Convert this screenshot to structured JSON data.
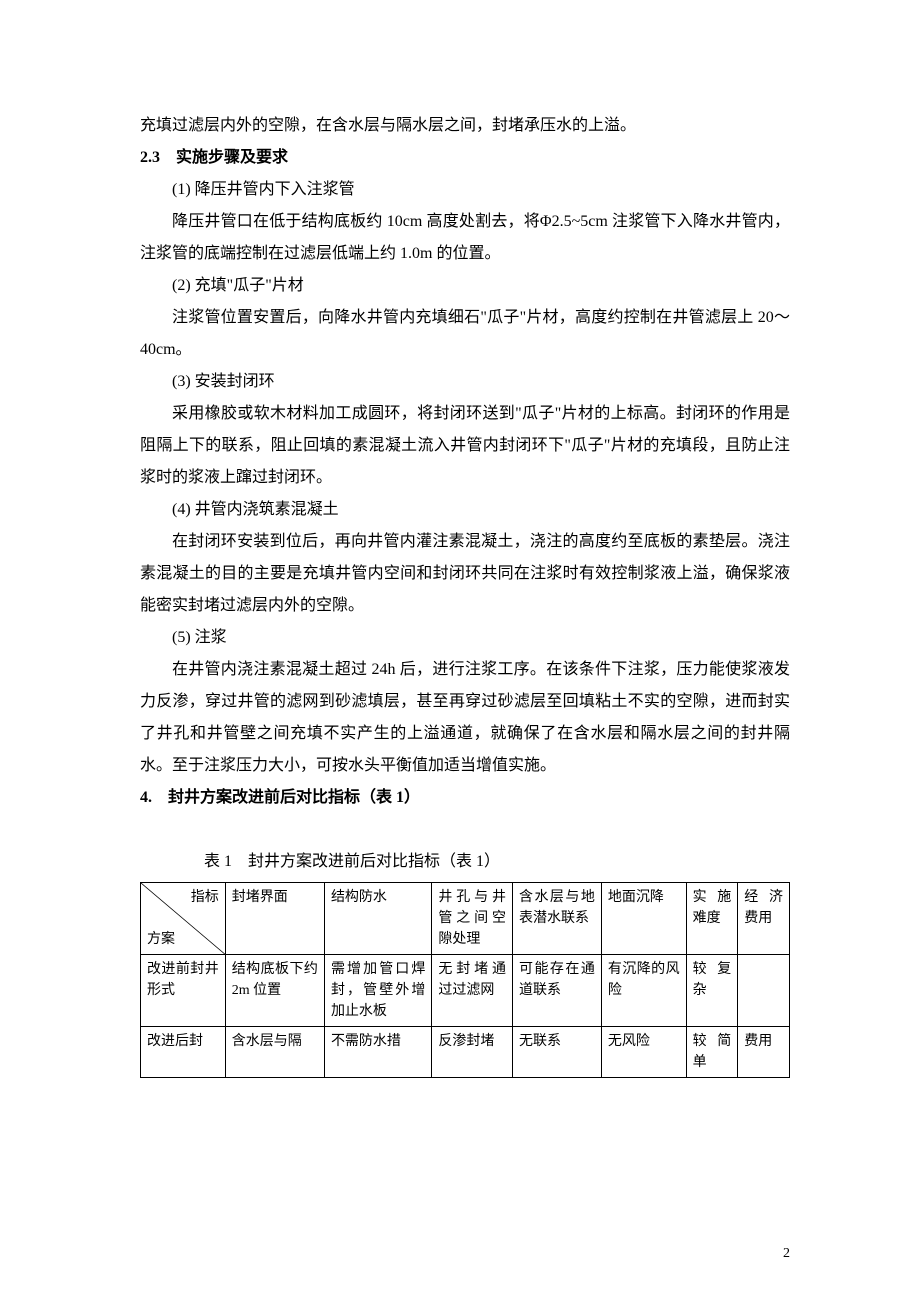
{
  "paragraphs": {
    "p0": "充填过滤层内外的空隙，在含水层与隔水层之间，封堵承压水的上溢。",
    "h23": "2.3　实施步骤及要求",
    "p1_title": "(1) 降压井管内下入注浆管",
    "p1_body": "降压井管口在低于结构底板约 10cm 高度处割去，将Φ2.5~5cm 注浆管下入降水井管内，注浆管的底端控制在过滤层低端上约 1.0m 的位置。",
    "p2_title": "(2) 充填\"瓜子\"片材",
    "p2_body": "注浆管位置安置后，向降水井管内充填细石\"瓜子\"片材，高度约控制在井管滤层上 20～40cm。",
    "p3_title": "(3) 安装封闭环",
    "p3_body": "采用橡胶或软木材料加工成圆环，将封闭环送到\"瓜子\"片材的上标高。封闭环的作用是阻隔上下的联系，阻止回填的素混凝土流入井管内封闭环下\"瓜子\"片材的充填段，且防止注浆时的浆液上蹿过封闭环。",
    "p4_title": "(4) 井管内浇筑素混凝土",
    "p4_body": "在封闭环安装到位后，再向井管内灌注素混凝土，浇注的高度约至底板的素垫层。浇注素混凝土的目的主要是充填井管内空间和封闭环共同在注浆时有效控制浆液上溢，确保浆液能密实封堵过滤层内外的空隙。",
    "p5_title": "(5) 注浆",
    "p5_body": "在井管内浇注素混凝土超过 24h 后，进行注浆工序。在该条件下注浆，压力能使浆液发力反渗，穿过井管的滤网到砂滤填层，甚至再穿过砂滤层至回填粘土不实的空隙，进而封实了井孔和井管壁之间充填不实产生的上溢通道，就确保了在含水层和隔水层之间的封井隔水。至于注浆压力大小，可按水头平衡值加适当增值实施。",
    "h4": "4.　封井方案改进前后对比指标（表 1）"
  },
  "table": {
    "caption": "表 1　封井方案改进前后对比指标（表 1）",
    "diag": {
      "top": "指标",
      "bottom": "方案"
    },
    "headers": [
      "封堵界面",
      "结构防水",
      "井孔与井管之间空隙处理",
      "含水层与地表潜水联系",
      "地面沉降",
      "实施难度",
      "经济费用"
    ],
    "rows": [
      {
        "label": "改进前封井形式",
        "cells": [
          "结构底板下约 2m 位置",
          "需增加管口焊封，管壁外增加止水板",
          "无封堵通过过滤网",
          "可能存在通道联系",
          "有沉降的风险",
          "较复杂",
          ""
        ]
      },
      {
        "label": "改进后封",
        "cells": [
          "含水层与隔",
          "不需防水措",
          "反渗封堵",
          "无联系",
          "无风险",
          "较简单",
          "费用"
        ]
      }
    ],
    "col_widths": [
      "82px",
      "96px",
      "104px",
      "78px",
      "86px",
      "82px",
      "50px",
      "50px"
    ]
  },
  "page_number": "2"
}
